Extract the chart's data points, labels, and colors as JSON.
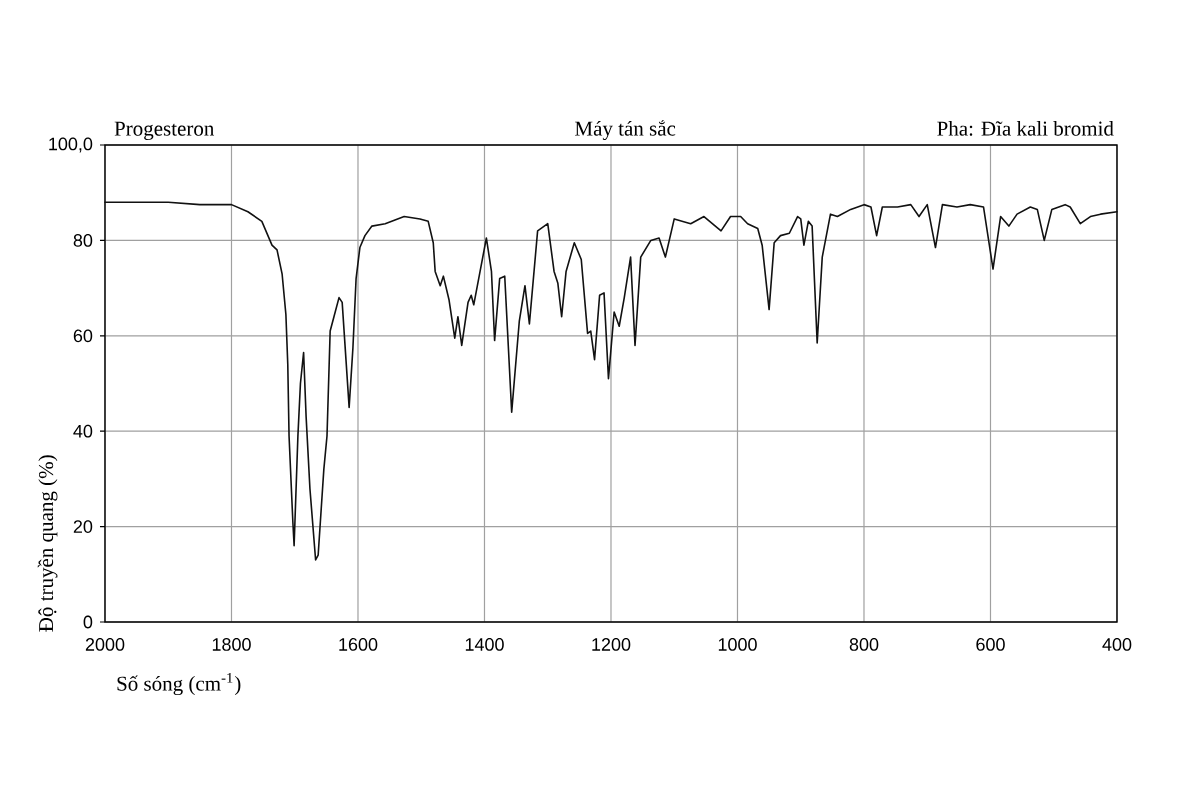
{
  "chart_data": {
    "type": "line",
    "title": "Máy tán sắc",
    "xlabel": "Số sóng (cm$^{-1}$)",
    "ylabel": "Độ truyền quang (%)",
    "annotations": [
      "Progesteron",
      "Pha: Đĩa kali bromid"
    ],
    "xlim": [
      2000,
      400
    ],
    "xticks": [
      2000,
      1800,
      1600,
      1400,
      1200,
      1000,
      800,
      600,
      400
    ],
    "ylim": [
      0,
      100
    ],
    "yticks": [
      0,
      20,
      40,
      60,
      80,
      {
        "value": 100,
        "label": "100,0"
      }
    ],
    "grid": true,
    "series": [
      {
        "color": "#111111",
        "x": [
          2000,
          1950,
          1900,
          1850,
          1800,
          1774,
          1752,
          1736,
          1728,
          1720,
          1714,
          1711,
          1709,
          1703,
          1701,
          1695,
          1691,
          1686,
          1682,
          1676,
          1667,
          1663,
          1654,
          1649,
          1644,
          1638,
          1630,
          1625,
          1619,
          1614,
          1608,
          1603,
          1597,
          1589,
          1578,
          1557,
          1527,
          1502,
          1489,
          1481,
          1478,
          1470,
          1465,
          1456,
          1447,
          1442,
          1436,
          1426,
          1421,
          1417,
          1397,
          1389,
          1384,
          1376,
          1368,
          1357,
          1345,
          1336,
          1329,
          1316,
          1300,
          1290,
          1284,
          1278,
          1271,
          1258,
          1247,
          1237,
          1232,
          1226,
          1218,
          1211,
          1204,
          1195,
          1187,
          1179,
          1169,
          1162,
          1153,
          1137,
          1124,
          1114,
          1100,
          1074,
          1053,
          1026,
          1011,
          995,
          984,
          968,
          961,
          950,
          942,
          932,
          918,
          905,
          900,
          895,
          888,
          882,
          874,
          866,
          853,
          842,
          821,
          800,
          789,
          780,
          771,
          747,
          726,
          713,
          700,
          687,
          676,
          653,
          632,
          611,
          596,
          584,
          571,
          558,
          537,
          526,
          515,
          503,
          482,
          474,
          458,
          442,
          426,
          400
        ],
        "values": [
          88,
          88,
          88,
          87.5,
          87.5,
          86,
          84,
          79,
          78,
          73,
          64.5,
          54,
          39,
          21,
          16,
          39,
          50,
          56.5,
          43,
          28,
          13,
          14,
          32,
          39,
          61,
          64,
          68,
          67,
          55,
          45,
          57.5,
          72,
          78.5,
          81,
          83,
          83.5,
          85,
          84.5,
          84,
          79.5,
          73.5,
          70.5,
          72.5,
          67.5,
          59.5,
          64,
          58,
          67,
          68.5,
          66.5,
          80.5,
          73.5,
          59,
          72,
          72.5,
          44,
          63,
          70.5,
          62.5,
          82,
          83.5,
          73.5,
          71,
          64,
          73.5,
          79.5,
          76,
          60.5,
          61,
          55,
          68.5,
          69,
          51,
          65,
          62,
          68,
          76.5,
          58,
          76.5,
          80,
          80.5,
          76.5,
          84.5,
          83.5,
          85,
          82,
          85,
          85,
          83.5,
          82.5,
          79,
          65.5,
          79.5,
          81,
          81.5,
          85,
          84.5,
          79,
          84,
          83,
          58.5,
          76.5,
          85.5,
          85,
          86.5,
          87.5,
          87,
          81,
          87,
          87,
          87.5,
          85,
          87.5,
          78.5,
          87.5,
          87,
          87.5,
          87,
          74,
          85,
          83,
          85.5,
          87,
          86.5,
          80,
          86.5,
          87.5,
          87,
          83.5,
          85,
          85.5,
          86
        ]
      }
    ]
  }
}
